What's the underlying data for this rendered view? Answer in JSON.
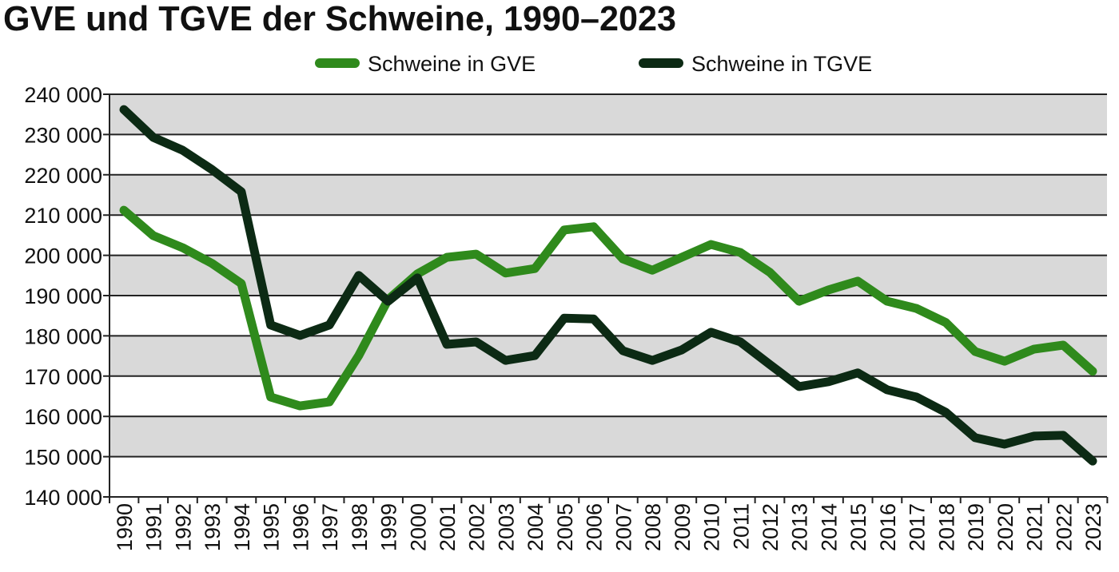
{
  "chart_data": {
    "type": "line",
    "title": "GVE und TGVE der Schweine, 1990–2023",
    "xlabel": "",
    "ylabel": "",
    "ylim": [
      140000,
      240000
    ],
    "yticks": [
      140000,
      150000,
      160000,
      170000,
      180000,
      190000,
      200000,
      210000,
      220000,
      230000,
      240000
    ],
    "ytick_labels": [
      "140 000",
      "150 000",
      "160 000",
      "170 000",
      "180 000",
      "190 000",
      "200 000",
      "210 000",
      "220 000",
      "230 000",
      "240 000"
    ],
    "grid": true,
    "legend_position": "top",
    "x": [
      "1990",
      "1991",
      "1992",
      "1993",
      "1994",
      "1995",
      "1996",
      "1997",
      "1998",
      "1999",
      "2000",
      "2001",
      "2002",
      "2003",
      "2004",
      "2005",
      "2006",
      "2007",
      "2008",
      "2009",
      "2010",
      "2011",
      "2012",
      "2013",
      "2014",
      "2015",
      "2016",
      "2017",
      "2018",
      "2019",
      "2020",
      "2021",
      "2022",
      "2023"
    ],
    "series": [
      {
        "name": "Schweine in GVE",
        "color": "#2f8a1c",
        "values": [
          211200,
          204900,
          201900,
          198000,
          193000,
          164800,
          162600,
          163600,
          175100,
          189000,
          195400,
          199500,
          200300,
          195600,
          196700,
          206300,
          207100,
          199100,
          196300,
          199500,
          202700,
          200700,
          195800,
          188600,
          191400,
          193600,
          188600,
          186800,
          183300,
          176100,
          173700,
          176700,
          177700,
          171200
        ]
      },
      {
        "name": "Schweine in TGVE",
        "color": "#0c2a14",
        "values": [
          236200,
          229300,
          226100,
          221300,
          215800,
          182700,
          180100,
          182700,
          195000,
          188600,
          194400,
          177900,
          178500,
          173900,
          175100,
          184400,
          184200,
          176300,
          173900,
          176500,
          180900,
          178500,
          172900,
          167400,
          168600,
          170800,
          166600,
          164800,
          161000,
          154700,
          153100,
          155100,
          155300,
          148900
        ]
      }
    ]
  },
  "colors": {
    "band": "#d9d9d9",
    "gridline": "#222222"
  }
}
